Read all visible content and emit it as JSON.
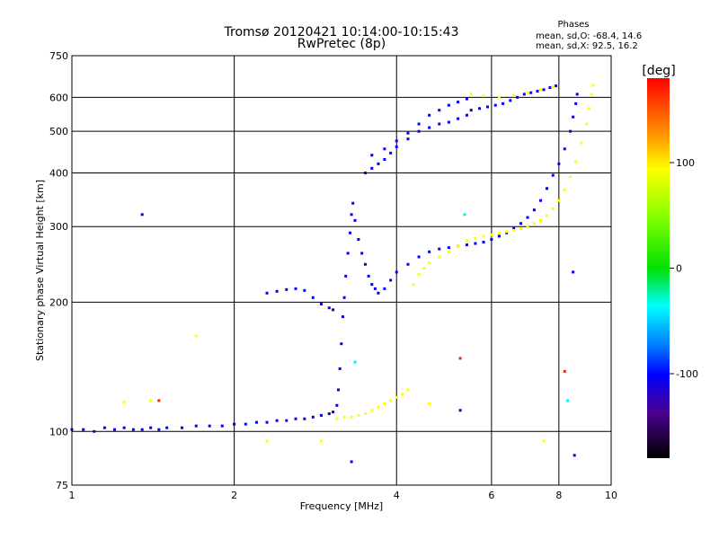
{
  "chart_data": {
    "type": "scatter",
    "title": "Tromsø 20120421 10:14:00-10:15:43",
    "subtitle": "RwPretec (8p)",
    "xlabel": "Frequency [MHz]",
    "ylabel": "Stationary phase Virtual Height [km]",
    "xscale": "log",
    "yscale": "log",
    "xlim": [
      1,
      10
    ],
    "ylim": [
      75,
      750
    ],
    "x_ticks": [
      1,
      2,
      4,
      6,
      8,
      10
    ],
    "y_ticks": [
      75,
      100,
      200,
      300,
      400,
      500,
      600,
      750
    ],
    "grid": true,
    "phase_stats": {
      "heading": "Phases",
      "line_o": "mean, sd,O: -68.4, 14.6",
      "line_x": "mean, sd,X: 92.5, 16.2"
    },
    "colorbar": {
      "label": "[deg]",
      "range": [
        -180,
        180
      ],
      "ticks": [
        {
          "value": 100,
          "label": "100"
        },
        {
          "value": 0,
          "label": "0"
        },
        {
          "value": -100,
          "label": "-100"
        }
      ]
    },
    "series": [
      {
        "mode": "O",
        "phase_deg": -100,
        "points": [
          [
            1.0,
            101
          ],
          [
            1.05,
            101
          ],
          [
            1.1,
            100
          ],
          [
            1.15,
            102
          ],
          [
            1.2,
            101
          ],
          [
            1.25,
            102
          ],
          [
            1.3,
            101
          ],
          [
            1.35,
            101
          ],
          [
            1.4,
            102
          ],
          [
            1.45,
            101
          ],
          [
            1.5,
            102
          ],
          [
            1.6,
            102
          ],
          [
            1.7,
            103
          ],
          [
            1.8,
            103
          ],
          [
            1.9,
            103
          ],
          [
            2.0,
            104
          ],
          [
            2.1,
            104
          ],
          [
            2.2,
            105
          ],
          [
            2.3,
            105
          ],
          [
            2.4,
            106
          ],
          [
            2.5,
            106
          ],
          [
            2.6,
            107
          ],
          [
            2.7,
            107
          ],
          [
            2.8,
            108
          ],
          [
            2.9,
            109
          ],
          [
            3.0,
            110
          ],
          [
            3.05,
            111
          ],
          [
            3.1,
            115
          ],
          [
            3.12,
            125
          ],
          [
            3.14,
            140
          ],
          [
            3.16,
            160
          ],
          [
            3.18,
            185
          ],
          [
            3.2,
            205
          ],
          [
            3.22,
            230
          ],
          [
            3.25,
            260
          ],
          [
            3.28,
            290
          ],
          [
            3.3,
            320
          ],
          [
            3.32,
            340
          ],
          [
            3.35,
            310
          ],
          [
            3.4,
            280
          ],
          [
            3.45,
            260
          ],
          [
            3.5,
            245
          ],
          [
            3.55,
            230
          ],
          [
            3.6,
            220
          ],
          [
            3.65,
            215
          ],
          [
            3.7,
            210
          ],
          [
            3.8,
            215
          ],
          [
            3.9,
            225
          ],
          [
            4.0,
            235
          ],
          [
            4.2,
            245
          ],
          [
            4.4,
            255
          ],
          [
            4.6,
            262
          ],
          [
            4.8,
            266
          ],
          [
            5.0,
            268
          ],
          [
            5.2,
            270
          ],
          [
            5.4,
            272
          ],
          [
            5.6,
            274
          ],
          [
            5.8,
            276
          ],
          [
            6.0,
            280
          ],
          [
            6.2,
            285
          ],
          [
            6.4,
            290
          ],
          [
            6.6,
            297
          ],
          [
            6.8,
            305
          ],
          [
            7.0,
            315
          ],
          [
            7.2,
            328
          ],
          [
            7.4,
            345
          ],
          [
            7.6,
            368
          ],
          [
            7.8,
            395
          ],
          [
            8.0,
            420
          ],
          [
            8.2,
            455
          ],
          [
            8.4,
            500
          ],
          [
            8.5,
            540
          ],
          [
            8.6,
            580
          ],
          [
            8.65,
            610
          ],
          [
            2.3,
            210
          ],
          [
            2.4,
            212
          ],
          [
            2.5,
            214
          ],
          [
            2.6,
            215
          ],
          [
            2.7,
            213
          ],
          [
            2.8,
            205
          ],
          [
            2.9,
            198
          ],
          [
            3.0,
            194
          ],
          [
            3.05,
            192
          ],
          [
            3.5,
            400
          ],
          [
            3.6,
            410
          ],
          [
            3.7,
            420
          ],
          [
            3.8,
            430
          ],
          [
            3.9,
            445
          ],
          [
            4.0,
            460
          ],
          [
            4.2,
            480
          ],
          [
            4.4,
            500
          ],
          [
            4.6,
            510
          ],
          [
            4.8,
            520
          ],
          [
            5.0,
            525
          ],
          [
            5.2,
            535
          ],
          [
            5.4,
            545
          ],
          [
            3.6,
            440
          ],
          [
            3.8,
            455
          ],
          [
            4.0,
            475
          ],
          [
            4.2,
            495
          ],
          [
            4.4,
            520
          ],
          [
            4.6,
            545
          ],
          [
            4.8,
            560
          ],
          [
            5.0,
            575
          ],
          [
            5.2,
            585
          ],
          [
            5.4,
            595
          ],
          [
            5.5,
            560
          ],
          [
            5.7,
            565
          ],
          [
            5.9,
            570
          ],
          [
            6.1,
            575
          ],
          [
            6.3,
            580
          ],
          [
            6.5,
            590
          ],
          [
            6.7,
            600
          ],
          [
            6.9,
            610
          ],
          [
            7.1,
            615
          ],
          [
            7.3,
            620
          ],
          [
            7.5,
            625
          ],
          [
            7.7,
            632
          ],
          [
            7.9,
            638
          ],
          [
            1.35,
            320
          ],
          [
            3.3,
            85
          ],
          [
            8.5,
            235
          ],
          [
            5.25,
            112
          ],
          [
            8.55,
            88
          ]
        ]
      },
      {
        "mode": "X",
        "phase_deg": 95,
        "points": [
          [
            3.1,
            107
          ],
          [
            3.2,
            108
          ],
          [
            3.3,
            108
          ],
          [
            3.4,
            109
          ],
          [
            3.5,
            110
          ],
          [
            3.6,
            112
          ],
          [
            3.7,
            114
          ],
          [
            3.8,
            116
          ],
          [
            3.9,
            118
          ],
          [
            4.0,
            120
          ],
          [
            4.1,
            122
          ],
          [
            4.2,
            125
          ],
          [
            4.3,
            220
          ],
          [
            4.4,
            232
          ],
          [
            4.5,
            240
          ],
          [
            4.6,
            247
          ],
          [
            4.8,
            255
          ],
          [
            5.0,
            262
          ],
          [
            5.2,
            270
          ],
          [
            5.4,
            278
          ],
          [
            5.6,
            282
          ],
          [
            5.8,
            285
          ],
          [
            6.0,
            287
          ],
          [
            6.2,
            290
          ],
          [
            6.4,
            292
          ],
          [
            6.6,
            294
          ],
          [
            6.8,
            297
          ],
          [
            7.0,
            300
          ],
          [
            7.2,
            305
          ],
          [
            7.4,
            310
          ],
          [
            7.6,
            318
          ],
          [
            7.8,
            330
          ],
          [
            8.0,
            345
          ],
          [
            8.2,
            365
          ],
          [
            8.4,
            392
          ],
          [
            8.6,
            425
          ],
          [
            8.8,
            470
          ],
          [
            9.0,
            520
          ],
          [
            9.1,
            565
          ],
          [
            9.2,
            610
          ],
          [
            9.25,
            640
          ],
          [
            5.5,
            610
          ],
          [
            5.8,
            605
          ],
          [
            6.2,
            600
          ],
          [
            6.6,
            605
          ],
          [
            7.0,
            615
          ],
          [
            7.4,
            625
          ],
          [
            7.8,
            635
          ],
          [
            1.25,
            117
          ],
          [
            1.4,
            118
          ],
          [
            1.7,
            167
          ],
          [
            2.3,
            95
          ],
          [
            2.9,
            95
          ],
          [
            4.6,
            116
          ],
          [
            7.5,
            95
          ]
        ]
      },
      {
        "mode": "other",
        "phase_deg": 170,
        "points": [
          [
            1.45,
            118
          ],
          [
            5.25,
            148
          ],
          [
            8.2,
            138
          ]
        ]
      },
      {
        "mode": "other",
        "phase_deg": -40,
        "points": [
          [
            3.35,
            145
          ],
          [
            5.35,
            320
          ],
          [
            8.3,
            118
          ]
        ]
      }
    ]
  }
}
